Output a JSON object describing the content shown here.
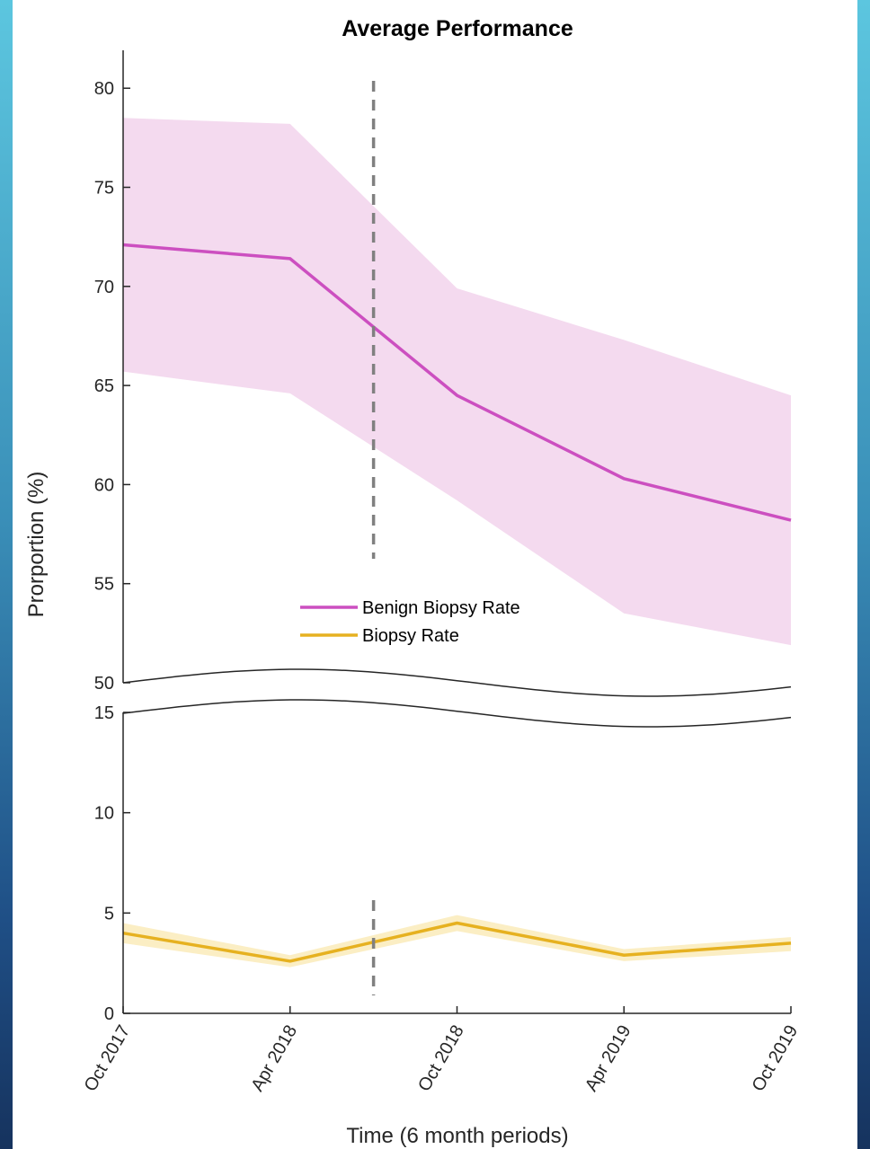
{
  "chart_data": {
    "type": "line",
    "title": "Average Performance",
    "xlabel": "Time (6 month periods)",
    "ylabel": "Prorportion (%)",
    "categories": [
      "Oct 2017",
      "Apr 2018",
      "Oct 2018",
      "Apr 2019",
      "Oct 2019"
    ],
    "broken_y_axis": true,
    "upper_panel": {
      "ylim": [
        50,
        82
      ],
      "yticks": [
        50,
        55,
        60,
        65,
        70,
        75,
        80
      ]
    },
    "lower_panel": {
      "ylim": [
        0,
        15
      ],
      "yticks": [
        0,
        5,
        10,
        15
      ]
    },
    "intervention_marker": {
      "x_between": [
        "Apr 2018",
        "Oct 2018"
      ],
      "style": "dashed"
    },
    "series": [
      {
        "name": "Benign Biopsy Rate",
        "color": "#cc4fc0",
        "band_color": "#f4daef",
        "panel": "upper",
        "values": [
          72.1,
          71.4,
          64.5,
          60.3,
          58.2
        ],
        "lower": [
          65.7,
          64.6,
          59.2,
          53.5,
          51.9
        ],
        "upper": [
          78.5,
          78.2,
          69.9,
          67.3,
          64.5
        ]
      },
      {
        "name": "Biopsy Rate",
        "color": "#e6b120",
        "band_color": "#fbeec4",
        "panel": "lower",
        "values": [
          4.0,
          2.6,
          4.5,
          2.9,
          3.5
        ],
        "lower": [
          3.5,
          2.3,
          4.1,
          2.6,
          3.1
        ],
        "upper": [
          4.5,
          2.9,
          4.9,
          3.2,
          3.8
        ]
      }
    ],
    "legend": {
      "location": "center",
      "entries": [
        "Benign Biopsy Rate",
        "Biopsy Rate"
      ]
    }
  }
}
